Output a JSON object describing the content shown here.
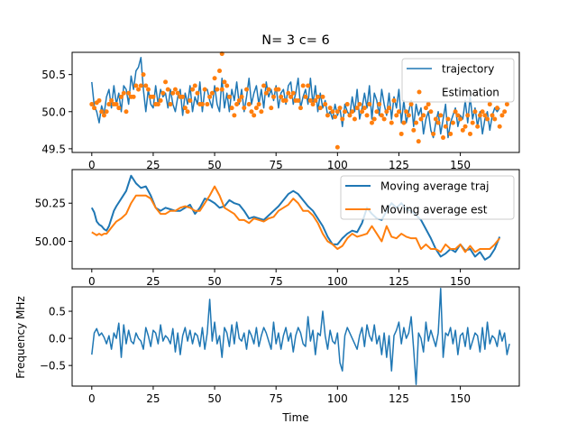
{
  "chart_data": [
    {
      "type": "line",
      "title": "N= 3 c= 6",
      "xlabel": "",
      "ylabel": "",
      "xlim": [
        -8,
        174
      ],
      "ylim": [
        49.45,
        50.8
      ],
      "xticks": [
        0,
        25,
        50,
        75,
        100,
        125,
        150
      ],
      "xtick_labels": [
        "0",
        "25",
        "50",
        "75",
        "100",
        "125",
        "150"
      ],
      "yticks": [
        49.5,
        50.0,
        50.5
      ],
      "ytick_labels": [
        "49.5",
        "50.0",
        "50.5"
      ],
      "legend_position": "top-right",
      "grid": false,
      "series": [
        {
          "name": "trajectory",
          "style": "line",
          "color": "#1f77b4",
          "x_start": 0,
          "values": [
            50.4,
            50.08,
            50.0,
            49.85,
            50.08,
            49.97,
            50.2,
            50.3,
            50.05,
            50.35,
            50.1,
            50.25,
            50.0,
            50.35,
            50.3,
            50.1,
            50.48,
            50.3,
            50.55,
            50.6,
            50.73,
            50.3,
            50.0,
            50.3,
            50.1,
            50.05,
            50.35,
            50.1,
            50.3,
            50.2,
            50.25,
            50.05,
            50.3,
            50.1,
            50.0,
            50.2,
            50.3,
            49.95,
            50.25,
            50.1,
            50.35,
            50.0,
            50.2,
            50.1,
            50.4,
            50.0,
            50.3,
            50.3,
            50.15,
            50.05,
            50.35,
            50.1,
            50.0,
            50.45,
            50.05,
            50.25,
            50.0,
            50.3,
            50.15,
            50.4,
            50.1,
            50.3,
            50.0,
            50.2,
            50.45,
            50.1,
            50.25,
            50.35,
            50.1,
            50.3,
            50.05,
            50.4,
            50.2,
            50.3,
            50.15,
            50.35,
            50.05,
            50.25,
            50.3,
            50.1,
            50.35,
            50.4,
            50.1,
            50.25,
            50.45,
            50.05,
            50.2,
            50.3,
            50.1,
            50.45,
            50.1,
            50.35,
            50.0,
            50.25,
            50.05,
            50.15,
            49.95,
            50.0,
            49.9,
            50.1,
            49.95,
            50.05,
            49.8,
            50.1,
            50.0,
            49.95,
            50.2,
            50.0,
            50.3,
            49.9,
            50.05,
            50.25,
            50.05,
            50.35,
            49.9,
            50.25,
            50.15,
            49.95,
            50.3,
            50.1,
            49.95,
            50.25,
            49.9,
            50.2,
            50.05,
            50.3,
            49.85,
            50.15,
            49.85,
            50.0,
            50.15,
            49.8,
            50.1,
            49.95,
            50.05,
            49.7,
            49.9,
            50.0,
            49.75,
            49.65,
            49.85,
            50.0,
            49.7,
            49.9,
            50.1,
            49.65,
            49.85,
            49.95,
            50.05,
            49.8,
            49.95,
            49.9,
            50.15,
            49.85,
            50.2,
            49.9,
            50.05,
            49.8,
            50.0,
            49.7,
            49.9,
            50.0,
            49.75,
            49.95,
            50.05,
            50.0,
            50.05
          ]
        },
        {
          "name": "Estimation",
          "style": "points",
          "color": "#ff7f0e",
          "x_start": 0,
          "values": [
            50.1,
            50.05,
            50.12,
            50.15,
            50.0,
            49.95,
            50.0,
            50.1,
            50.15,
            50.1,
            50.1,
            50.05,
            50.2,
            50.25,
            50.0,
            50.25,
            50.2,
            50.2,
            50.35,
            50.3,
            50.35,
            50.5,
            50.35,
            50.3,
            50.2,
            50.2,
            50.1,
            50.1,
            50.15,
            50.25,
            50.4,
            50.3,
            50.1,
            50.25,
            50.3,
            50.25,
            50.2,
            50.2,
            50.05,
            50.0,
            50.15,
            50.3,
            50.35,
            50.25,
            50.1,
            50.1,
            50.3,
            50.1,
            50.2,
            50.25,
            50.45,
            50.3,
            50.55,
            50.3,
            50.4,
            50.35,
            50.2,
            50.05,
            49.95,
            50.1,
            50.15,
            50.2,
            50.05,
            50.3,
            50.1,
            50.0,
            49.95,
            50.05,
            50.1,
            50.0,
            50.35,
            50.25,
            50.3,
            50.05,
            50.2,
            50.3,
            50.3,
            50.2,
            50.15,
            50.15,
            50.25,
            50.2,
            50.25,
            50.15,
            50.15,
            50.05,
            50.35,
            50.2,
            50.35,
            50.15,
            50.1,
            50.15,
            50.2,
            50.05,
            50.2,
            50.1,
            49.95,
            50.05,
            50.0,
            49.93,
            50.0,
            50.05,
            49.9,
            50.0,
            50.1,
            49.95,
            50.0,
            49.9,
            50.05,
            50.1,
            50.0,
            50.05,
            49.95,
            50.1,
            49.85,
            49.9,
            50.0,
            50.1,
            49.95,
            49.9,
            50.0,
            50.05,
            49.85,
            50.15,
            49.95,
            50.0,
            49.7,
            49.85,
            50.0,
            49.95,
            50.1,
            49.75,
            49.85,
            49.6,
            49.9,
            49.95,
            50.05,
            50.1,
            50.0,
            49.7,
            49.9,
            49.85,
            49.95,
            49.65,
            49.8,
            49.9,
            49.7,
            49.85,
            50.0,
            49.95,
            49.9,
            49.75,
            49.8,
            49.95,
            49.7,
            49.85,
            50.0,
            49.8,
            49.95,
            50.0,
            49.95,
            49.9,
            50.1,
            49.95,
            49.9,
            50.05,
            49.8,
            49.95,
            50.0,
            50.1
          ]
        }
      ],
      "outlier_points": [
        {
          "x": 53,
          "y": 50.78
        },
        {
          "x": 100,
          "y": 49.52
        }
      ]
    },
    {
      "type": "line",
      "title": "",
      "xlabel": "",
      "ylabel": "",
      "xlim": [
        -8,
        174
      ],
      "ylim": [
        49.82,
        50.47
      ],
      "xticks": [
        0,
        25,
        50,
        75,
        100,
        125,
        150
      ],
      "xtick_labels": [
        "0",
        "25",
        "50",
        "75",
        "100",
        "125",
        "150"
      ],
      "yticks": [
        50.0,
        50.25
      ],
      "ytick_labels": [
        "50.00",
        "50.25"
      ],
      "legend_position": "top-right",
      "grid": false,
      "series": [
        {
          "name": "Moving average traj",
          "color": "#1f77b4",
          "x": [
            0,
            1,
            2,
            3,
            4,
            5,
            6,
            7,
            8,
            9,
            10,
            12,
            14,
            16,
            18,
            20,
            22,
            24,
            26,
            28,
            30,
            32,
            34,
            36,
            38,
            40,
            42,
            44,
            46,
            48,
            50,
            52,
            54,
            56,
            58,
            60,
            62,
            64,
            66,
            68,
            70,
            72,
            74,
            76,
            78,
            80,
            82,
            84,
            86,
            88,
            90,
            92,
            94,
            96,
            98,
            100,
            102,
            104,
            106,
            108,
            110,
            112,
            114,
            116,
            118,
            120,
            122,
            124,
            126,
            128,
            130,
            132,
            134,
            136,
            138,
            140,
            142,
            144,
            146,
            148,
            150,
            152,
            154,
            156,
            158,
            160,
            162,
            164,
            166
          ],
          "values": [
            50.22,
            50.19,
            50.13,
            50.11,
            50.1,
            50.08,
            50.07,
            50.1,
            50.15,
            50.2,
            50.23,
            50.28,
            50.33,
            50.43,
            50.38,
            50.35,
            50.36,
            50.3,
            50.22,
            50.2,
            50.22,
            50.21,
            50.2,
            50.2,
            50.22,
            50.24,
            50.18,
            50.22,
            50.28,
            50.27,
            50.25,
            50.22,
            50.23,
            50.27,
            50.25,
            50.24,
            50.2,
            50.15,
            50.16,
            50.15,
            50.14,
            50.17,
            50.2,
            50.23,
            50.27,
            50.31,
            50.33,
            50.31,
            50.27,
            50.23,
            50.2,
            50.15,
            50.1,
            50.03,
            49.98,
            49.98,
            50.02,
            50.05,
            50.07,
            50.06,
            50.12,
            50.22,
            50.18,
            50.15,
            50.14,
            50.2,
            50.25,
            50.22,
            50.25,
            50.21,
            50.2,
            50.17,
            50.14,
            50.08,
            50.02,
            49.95,
            49.9,
            49.92,
            49.95,
            49.93,
            49.98,
            49.94,
            49.95,
            49.9,
            49.93,
            49.88,
            49.9,
            49.95,
            50.03
          ]
        },
        {
          "name": "Moving average est",
          "color": "#ff7f0e",
          "x": [
            0,
            1,
            2,
            3,
            4,
            5,
            6,
            7,
            8,
            9,
            10,
            12,
            14,
            16,
            18,
            20,
            22,
            24,
            26,
            28,
            30,
            32,
            34,
            36,
            38,
            40,
            42,
            44,
            46,
            48,
            50,
            52,
            54,
            56,
            58,
            60,
            62,
            64,
            66,
            68,
            70,
            72,
            74,
            76,
            78,
            80,
            82,
            84,
            86,
            88,
            90,
            92,
            94,
            96,
            98,
            100,
            102,
            104,
            106,
            108,
            110,
            112,
            114,
            116,
            118,
            120,
            122,
            124,
            126,
            128,
            130,
            132,
            134,
            136,
            138,
            140,
            142,
            144,
            146,
            148,
            150,
            152,
            154,
            156,
            158,
            160,
            162,
            164,
            166
          ],
          "values": [
            50.06,
            50.05,
            50.04,
            50.05,
            50.04,
            50.05,
            50.05,
            50.07,
            50.09,
            50.11,
            50.13,
            50.15,
            50.18,
            50.25,
            50.3,
            50.3,
            50.3,
            50.28,
            50.22,
            50.18,
            50.18,
            50.2,
            50.2,
            50.22,
            50.23,
            50.22,
            50.2,
            50.2,
            50.25,
            50.3,
            50.36,
            50.3,
            50.22,
            50.2,
            50.18,
            50.14,
            50.14,
            50.12,
            50.15,
            50.14,
            50.13,
            50.15,
            50.16,
            50.2,
            50.22,
            50.24,
            50.28,
            50.25,
            50.2,
            50.2,
            50.17,
            50.12,
            50.05,
            50.0,
            49.98,
            49.95,
            49.97,
            50.02,
            50.05,
            50.03,
            50.04,
            50.05,
            50.1,
            50.05,
            50.0,
            50.1,
            50.03,
            50.02,
            50.05,
            50.03,
            50.02,
            50.02,
            49.95,
            49.98,
            49.95,
            49.95,
            49.93,
            49.98,
            49.95,
            49.95,
            49.98,
            49.93,
            49.97,
            49.93,
            49.95,
            49.95,
            49.95,
            49.98,
            50.02
          ]
        }
      ]
    },
    {
      "type": "line",
      "title": "",
      "xlabel": "Time",
      "ylabel": "Frequency MHz",
      "xlim": [
        -8,
        174
      ],
      "ylim": [
        -0.88,
        0.95
      ],
      "xticks": [
        0,
        25,
        50,
        75,
        100,
        125,
        150
      ],
      "xtick_labels": [
        "0",
        "25",
        "50",
        "75",
        "100",
        "125",
        "150"
      ],
      "yticks": [
        -0.5,
        0.0,
        0.5
      ],
      "ytick_labels": [
        "−0.5",
        "0.0",
        "0.5"
      ],
      "legend_position": "",
      "grid": false,
      "series": [
        {
          "name": "",
          "color": "#1f77b4",
          "x_start": 0,
          "values": [
            -0.3,
            0.1,
            0.18,
            0.05,
            0.1,
            0.02,
            -0.1,
            0.05,
            -0.2,
            0.1,
            0.0,
            0.28,
            -0.35,
            0.25,
            -0.1,
            0.15,
            -0.05,
            -0.1,
            0.1,
            0.0,
            -0.05,
            -0.2,
            0.2,
            0.05,
            -0.15,
            0.15,
            0.1,
            -0.1,
            0.25,
            -0.05,
            0.05,
            0.0,
            -0.1,
            0.18,
            -0.25,
            0.1,
            -0.3,
            0.05,
            0.2,
            -0.05,
            0.15,
            -0.1,
            0.1,
            0.05,
            -0.15,
            0.2,
            -0.2,
            0.1,
            0.72,
            -0.05,
            0.3,
            -0.1,
            0.05,
            -0.35,
            0.2,
            0.1,
            -0.15,
            0.25,
            -0.1,
            0.3,
            0.0,
            -0.05,
            0.1,
            -0.2,
            0.15,
            0.05,
            -0.1,
            0.2,
            -0.15,
            0.05,
            0.2,
            0.1,
            -0.05,
            -0.2,
            0.3,
            -0.1,
            0.1,
            -0.2,
            0.05,
            0.2,
            -0.05,
            0.1,
            -0.25,
            0.05,
            0.2,
            0.1,
            -0.1,
            -0.15,
            0.4,
            -0.05,
            0.15,
            -0.3,
            0.1,
            0.05,
            0.5,
            0.05,
            -0.2,
            0.15,
            -0.05,
            -0.1,
            0.1,
            -0.45,
            -0.6,
            0.05,
            0.2,
            0.1,
            0.0,
            -0.1,
            -0.2,
            0.05,
            0.2,
            -0.15,
            0.25,
            0.05,
            -0.05,
            0.25,
            -0.1,
            0.05,
            -0.3,
            0.1,
            -0.35,
            0.05,
            -0.6,
            0.05,
            0.15,
            0.3,
            -0.1,
            0.2,
            0.0,
            0.1,
            0.4,
            -0.2,
            -0.85,
            0.1,
            0.0,
            -0.25,
            0.3,
            -0.05,
            0.15,
            0.0,
            -0.15,
            0.1,
            0.92,
            -0.35,
            0.1,
            0.05,
            0.2,
            -0.1,
            0.15,
            -0.3,
            0.05,
            0.1,
            -0.15,
            0.2,
            -0.2,
            -0.05,
            0.1,
            0.05,
            -0.25,
            0.2,
            -0.2,
            0.3,
            -0.1,
            0.05,
            0.0,
            -0.15,
            0.15,
            -0.05,
            0.1,
            -0.3,
            -0.1
          ]
        }
      ]
    }
  ]
}
